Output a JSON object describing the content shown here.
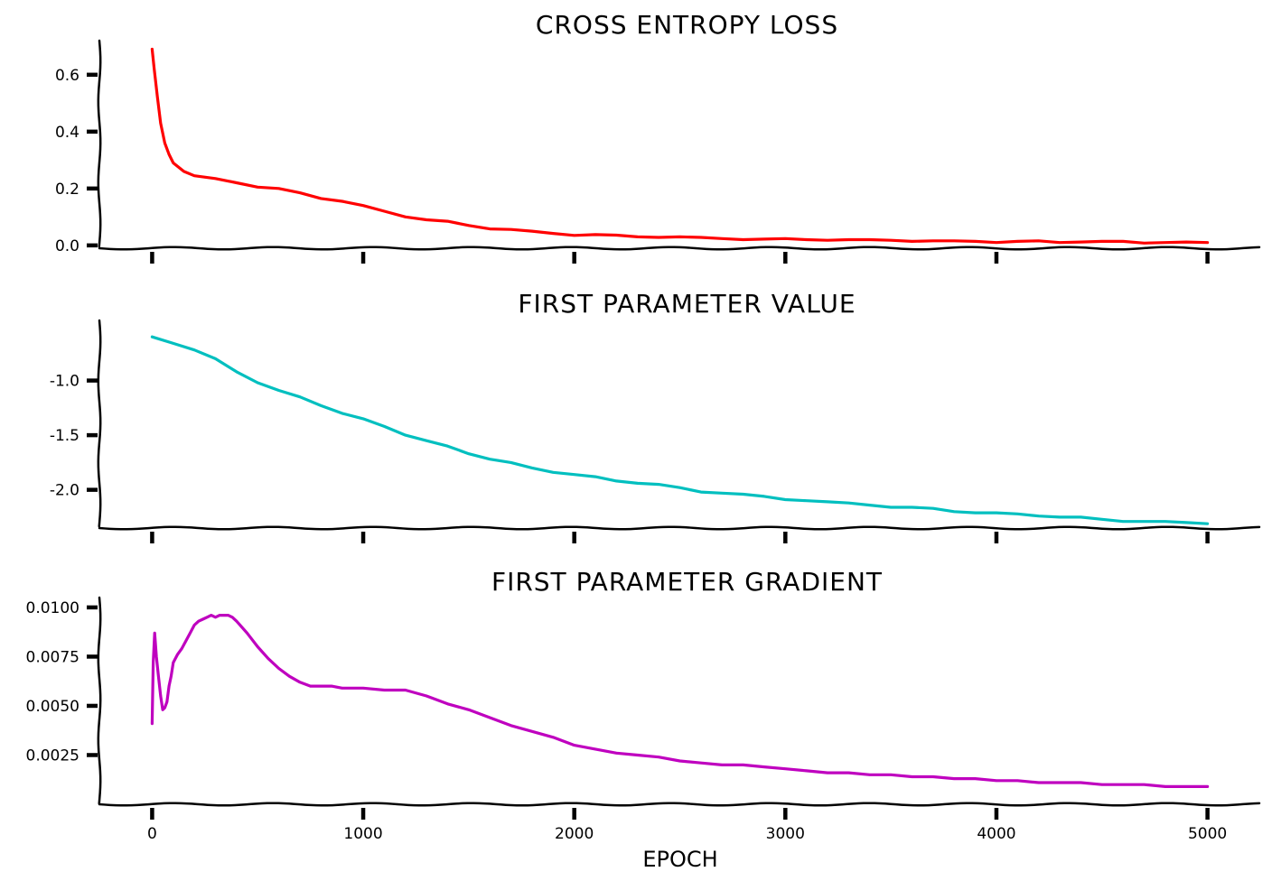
{
  "figure": {
    "xlabel": "EPOCH"
  },
  "chart_data": [
    {
      "type": "line",
      "title": "CROSS ENTROPY LOSS",
      "xlabel": "",
      "ylabel": "",
      "xlim": [
        -250,
        5250
      ],
      "ylim": [
        -0.01,
        0.72
      ],
      "xticks": [
        "",
        "",
        "",
        "",
        "",
        ""
      ],
      "xtick_values": [
        0,
        1000,
        2000,
        3000,
        4000,
        5000
      ],
      "yticks": [
        "0.0",
        "0.2",
        "0.4",
        "0.6"
      ],
      "ytick_values": [
        0.0,
        0.2,
        0.4,
        0.6
      ],
      "grid": false,
      "color": "#ff0000",
      "series": [
        {
          "x": [
            0,
            10,
            25,
            40,
            60,
            80,
            100,
            150,
            200,
            300,
            400,
            500,
            600,
            700,
            800,
            900,
            1000,
            1100,
            1200,
            1300,
            1400,
            1500,
            1600,
            1700,
            1800,
            1900,
            2000,
            2100,
            2200,
            2300,
            2400,
            2500,
            2600,
            2700,
            2800,
            2900,
            3000,
            3100,
            3200,
            3300,
            3400,
            3500,
            3600,
            3700,
            3800,
            3900,
            4000,
            4100,
            4200,
            4300,
            4400,
            4500,
            4600,
            4700,
            4800,
            4900,
            5000
          ],
          "y": [
            0.69,
            0.62,
            0.52,
            0.43,
            0.36,
            0.32,
            0.29,
            0.26,
            0.245,
            0.235,
            0.22,
            0.205,
            0.2,
            0.185,
            0.165,
            0.155,
            0.14,
            0.12,
            0.1,
            0.09,
            0.085,
            0.07,
            0.058,
            0.056,
            0.05,
            0.042,
            0.035,
            0.038,
            0.036,
            0.03,
            0.028,
            0.03,
            0.028,
            0.024,
            0.02,
            0.022,
            0.024,
            0.02,
            0.018,
            0.02,
            0.02,
            0.018,
            0.014,
            0.016,
            0.016,
            0.014,
            0.01,
            0.014,
            0.016,
            0.01,
            0.012,
            0.014,
            0.014,
            0.008,
            0.01,
            0.012,
            0.01
          ]
        }
      ]
    },
    {
      "type": "line",
      "title": "FIRST PARAMETER VALUE",
      "xlabel": "",
      "ylabel": "",
      "xlim": [
        -250,
        5250
      ],
      "ylim": [
        -2.35,
        -0.45
      ],
      "xticks": [
        "",
        "",
        "",
        "",
        "",
        ""
      ],
      "xtick_values": [
        0,
        1000,
        2000,
        3000,
        4000,
        5000
      ],
      "yticks": [
        "-2.0",
        "-1.5",
        "-1.0"
      ],
      "ytick_values": [
        -2.0,
        -1.5,
        -1.0
      ],
      "grid": false,
      "color": "#00bfbf",
      "series": [
        {
          "x": [
            0,
            100,
            200,
            300,
            400,
            500,
            600,
            700,
            800,
            900,
            1000,
            1100,
            1200,
            1300,
            1400,
            1500,
            1600,
            1700,
            1800,
            1900,
            2000,
            2100,
            2200,
            2300,
            2400,
            2500,
            2600,
            2700,
            2800,
            2900,
            3000,
            3100,
            3200,
            3300,
            3400,
            3500,
            3600,
            3700,
            3800,
            3900,
            4000,
            4100,
            4200,
            4300,
            4400,
            4500,
            4600,
            4700,
            4800,
            4900,
            5000
          ],
          "y": [
            -0.6,
            -0.66,
            -0.72,
            -0.8,
            -0.92,
            -1.02,
            -1.09,
            -1.15,
            -1.23,
            -1.3,
            -1.35,
            -1.42,
            -1.5,
            -1.55,
            -1.6,
            -1.67,
            -1.72,
            -1.75,
            -1.8,
            -1.84,
            -1.86,
            -1.88,
            -1.92,
            -1.94,
            -1.95,
            -1.98,
            -2.02,
            -2.03,
            -2.04,
            -2.06,
            -2.09,
            -2.1,
            -2.11,
            -2.12,
            -2.14,
            -2.16,
            -2.16,
            -2.17,
            -2.2,
            -2.21,
            -2.21,
            -2.22,
            -2.24,
            -2.25,
            -2.25,
            -2.27,
            -2.29,
            -2.29,
            -2.29,
            -2.3,
            -2.31
          ]
        }
      ]
    },
    {
      "type": "line",
      "title": "FIRST PARAMETER GRADIENT",
      "xlabel": "EPOCH",
      "ylabel": "",
      "xlim": [
        -250,
        5250
      ],
      "ylim": [
        0.0,
        0.0105
      ],
      "xticks": [
        "0",
        "1000",
        "2000",
        "3000",
        "4000",
        "5000"
      ],
      "xtick_values": [
        0,
        1000,
        2000,
        3000,
        4000,
        5000
      ],
      "yticks": [
        "0.0025",
        "0.0050",
        "0.0075",
        "0.0100"
      ],
      "ytick_values": [
        0.0025,
        0.005,
        0.0075,
        0.01
      ],
      "grid": false,
      "color": "#bf00bf",
      "series": [
        {
          "x": [
            0,
            5,
            12,
            20,
            30,
            40,
            50,
            60,
            70,
            80,
            90,
            100,
            120,
            140,
            160,
            180,
            200,
            220,
            240,
            260,
            280,
            300,
            320,
            340,
            360,
            380,
            400,
            450,
            500,
            550,
            600,
            650,
            700,
            750,
            800,
            850,
            900,
            1000,
            1100,
            1200,
            1300,
            1400,
            1500,
            1600,
            1700,
            1800,
            1900,
            2000,
            2100,
            2200,
            2300,
            2400,
            2500,
            2600,
            2700,
            2800,
            2900,
            3000,
            3100,
            3200,
            3300,
            3400,
            3500,
            3600,
            3700,
            3800,
            3900,
            4000,
            4100,
            4200,
            4300,
            4400,
            4500,
            4600,
            4700,
            4800,
            4900,
            5000
          ],
          "y": [
            0.0041,
            0.0072,
            0.0087,
            0.0075,
            0.0065,
            0.0055,
            0.0048,
            0.0049,
            0.0052,
            0.006,
            0.0065,
            0.0072,
            0.0076,
            0.0079,
            0.0083,
            0.0087,
            0.0091,
            0.0093,
            0.0094,
            0.0095,
            0.0096,
            0.0095,
            0.0096,
            0.0096,
            0.0096,
            0.0095,
            0.0093,
            0.0087,
            0.008,
            0.0074,
            0.0069,
            0.0065,
            0.0062,
            0.006,
            0.006,
            0.006,
            0.0059,
            0.0059,
            0.0058,
            0.0058,
            0.0055,
            0.0051,
            0.0048,
            0.0044,
            0.004,
            0.0037,
            0.0034,
            0.003,
            0.0028,
            0.0026,
            0.0025,
            0.0024,
            0.0022,
            0.0021,
            0.002,
            0.002,
            0.0019,
            0.0018,
            0.0017,
            0.0016,
            0.0016,
            0.0015,
            0.0015,
            0.0014,
            0.0014,
            0.0013,
            0.0013,
            0.0012,
            0.0012,
            0.0011,
            0.0011,
            0.0011,
            0.001,
            0.001,
            0.001,
            0.0009,
            0.0009,
            0.0009
          ]
        }
      ]
    }
  ]
}
